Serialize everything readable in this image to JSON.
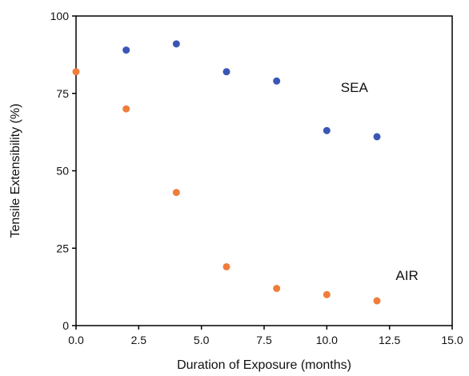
{
  "chart_data": {
    "type": "scatter",
    "xlabel": "Duration of Exposure (months)",
    "ylabel": "Tensile Extensibility (%)",
    "xlim": [
      0,
      15
    ],
    "ylim": [
      0,
      100
    ],
    "xticks": [
      0,
      2.5,
      5,
      7.5,
      10,
      12.5,
      15
    ],
    "xtick_labels": [
      "0.0",
      "2.5",
      "5.0",
      "7.5",
      "10.0",
      "12.5",
      "15.0"
    ],
    "yticks": [
      0,
      25,
      50,
      75,
      100
    ],
    "ytick_labels": [
      "0",
      "25",
      "50",
      "75",
      "100"
    ],
    "grid": false,
    "series": [
      {
        "name": "SEA",
        "color": "#3a56b5",
        "x": [
          2,
          4,
          6,
          8,
          10,
          12
        ],
        "y": [
          89,
          91,
          82,
          79,
          63,
          61
        ]
      },
      {
        "name": "AIR",
        "color": "#f07d3c",
        "x": [
          0,
          2,
          4,
          6,
          8,
          10,
          12
        ],
        "y": [
          82,
          70,
          43,
          19,
          12,
          10,
          8
        ]
      }
    ],
    "annotations": [
      {
        "text": "SEA",
        "x": 11.1,
        "y": 75.5
      },
      {
        "text": "AIR",
        "x": 13.2,
        "y": 14.7
      }
    ]
  }
}
